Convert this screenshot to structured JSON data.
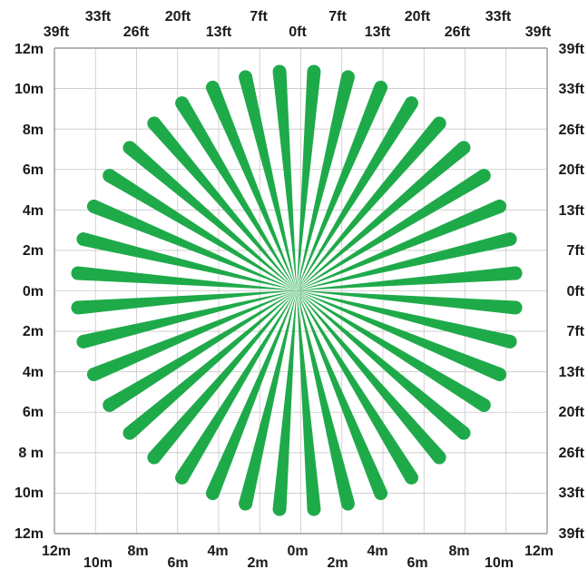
{
  "diagram": {
    "beam_color": "#1faa4a",
    "grid_color": "#c8c8c8",
    "frame_color": "#9a9a9a",
    "label_color": "#1a1a1a",
    "beam_count": 40,
    "beam_reach_m": 10.9,
    "left_labels": [
      "12m",
      "10m",
      "8m",
      "6m",
      "4m",
      "2m",
      "0m",
      "2m",
      "4m",
      "6m",
      "8 m",
      "10m",
      "12m"
    ],
    "right_labels": [
      "39ft",
      "33ft",
      "26ft",
      "20ft",
      "13ft",
      "7ft",
      "0ft",
      "7ft",
      "13ft",
      "20ft",
      "26ft",
      "33ft",
      "39ft"
    ],
    "top_labels": [
      "39ft",
      "33ft",
      "26ft",
      "20ft",
      "13ft",
      "7ft",
      "0ft",
      "7ft",
      "13ft",
      "20ft",
      "26ft",
      "33ft",
      "39ft"
    ],
    "bottom_labels": [
      "12m",
      "10m",
      "8m",
      "6m",
      "4m",
      "2m",
      "0m",
      "2m",
      "4m",
      "6m",
      "8m",
      "10m",
      "12m"
    ]
  }
}
